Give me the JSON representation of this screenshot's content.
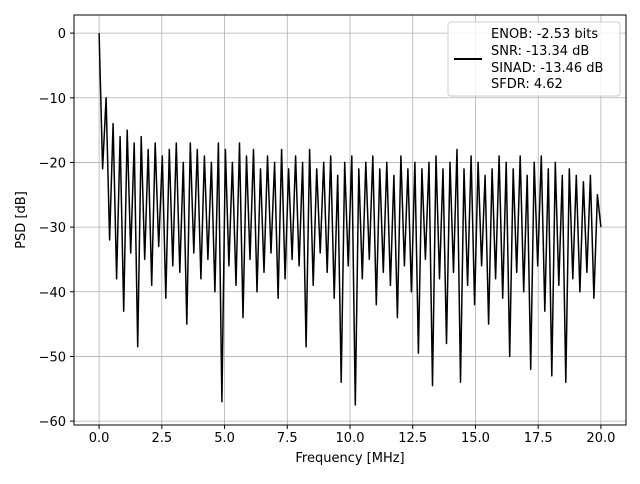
{
  "chart_data": {
    "type": "line",
    "title": "",
    "xlabel": "Frequency [MHz]",
    "ylabel": "PSD [dB]",
    "xlim": [
      -1.0,
      21.0
    ],
    "ylim": [
      -60.6,
      2.8
    ],
    "xticks": [
      0.0,
      2.5,
      5.0,
      7.5,
      10.0,
      12.5,
      15.0,
      17.5,
      20.0
    ],
    "xtick_labels": [
      "0.0",
      "2.5",
      "5.0",
      "7.5",
      "10.0",
      "12.5",
      "15.0",
      "17.5",
      "20.0"
    ],
    "yticks": [
      0,
      -10,
      -20,
      -30,
      -40,
      -50,
      -60
    ],
    "ytick_labels": [
      "0",
      "−10",
      "−20",
      "−30",
      "−40",
      "−50",
      "−60"
    ],
    "grid": true,
    "legend_position": "top-right",
    "legend": [
      "ENOB: -2.53 bits",
      "SNR: -13.34 dB",
      "SINAD: -13.46 dB",
      "SFDR: 4.62"
    ],
    "series": [
      {
        "name": "PSD",
        "color": "#000000",
        "x_start": 0.0,
        "x_end": 20.0,
        "values": [
          0,
          -21,
          -10,
          -32,
          -14,
          -38,
          -16,
          -43,
          -15,
          -34,
          -17,
          -48.5,
          -16,
          -35,
          -18,
          -39,
          -17,
          -33,
          -19,
          -41,
          -18,
          -36,
          -17,
          -37,
          -20,
          -45,
          -17,
          -34,
          -18,
          -38,
          -19,
          -35,
          -20,
          -40,
          -17,
          -57,
          -18,
          -36,
          -20,
          -39,
          -17,
          -44,
          -19,
          -35,
          -18,
          -40,
          -21,
          -37,
          -19,
          -34,
          -20,
          -41,
          -18,
          -38,
          -21,
          -35,
          -19,
          -36,
          -20,
          -48.5,
          -18,
          -39,
          -21,
          -34,
          -20,
          -37,
          -19,
          -41,
          -22,
          -54,
          -20,
          -36,
          -19,
          -57.5,
          -21,
          -38,
          -20,
          -35,
          -19,
          -42,
          -21,
          -37,
          -20,
          -39,
          -22,
          -44,
          -19,
          -36,
          -21,
          -40,
          -20,
          -49.5,
          -21,
          -35,
          -20,
          -54.5,
          -19,
          -38,
          -21,
          -48,
          -20,
          -37,
          -18,
          -54,
          -21,
          -39,
          -19,
          -42,
          -20,
          -36,
          -22,
          -45,
          -21,
          -38,
          -19,
          -41,
          -20,
          -50,
          -21,
          -37,
          -19,
          -40,
          -22,
          -52,
          -20,
          -36,
          -19,
          -43,
          -21,
          -53,
          -20,
          -39,
          -22,
          -54,
          -21,
          -38,
          -22,
          -40,
          -23,
          -37,
          -22,
          -41,
          -25,
          -30
        ]
      }
    ]
  }
}
